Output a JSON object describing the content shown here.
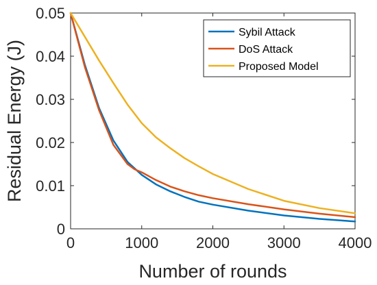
{
  "chart_data": {
    "type": "line",
    "xlabel": "Number of rounds",
    "ylabel": "Residual Energy (J)",
    "xlim": [
      0,
      4000
    ],
    "ylim": [
      0,
      0.05
    ],
    "xticks": [
      0,
      1000,
      2000,
      3000,
      4000
    ],
    "xtick_labels": [
      "0",
      "1000",
      "2000",
      "3000",
      "4000"
    ],
    "yticks": [
      0,
      0.01,
      0.02,
      0.03,
      0.04,
      0.05
    ],
    "ytick_labels": [
      "0",
      "0.01",
      "0.02",
      "0.03",
      "0.04",
      "0.05"
    ],
    "grid": false,
    "legend_position": "top-right",
    "series": [
      {
        "name": "Sybil Attack",
        "color": "#0072BD",
        "x": [
          0,
          200,
          400,
          600,
          800,
          1000,
          1200,
          1400,
          1600,
          1800,
          2000,
          2500,
          3000,
          3500,
          4000
        ],
        "y": [
          0.05,
          0.038,
          0.028,
          0.0205,
          0.0155,
          0.0125,
          0.0103,
          0.0087,
          0.0074,
          0.0063,
          0.0056,
          0.0042,
          0.0031,
          0.0023,
          0.0017
        ]
      },
      {
        "name": "DoS Attack",
        "color": "#D95319",
        "x": [
          0,
          200,
          400,
          600,
          800,
          900,
          1000,
          1200,
          1400,
          1600,
          1800,
          2000,
          2500,
          3000,
          3500,
          4000
        ],
        "y": [
          0.05,
          0.0375,
          0.0275,
          0.0195,
          0.015,
          0.0138,
          0.0131,
          0.0113,
          0.0098,
          0.0087,
          0.0078,
          0.0071,
          0.0057,
          0.0045,
          0.0035,
          0.0027
        ]
      },
      {
        "name": "Proposed Model",
        "color": "#EDB120",
        "x": [
          0,
          200,
          400,
          600,
          800,
          1000,
          1200,
          1400,
          1600,
          1800,
          2000,
          2500,
          3000,
          3500,
          4000
        ],
        "y": [
          0.05,
          0.0445,
          0.039,
          0.0338,
          0.0288,
          0.0245,
          0.0212,
          0.0187,
          0.0164,
          0.0145,
          0.0127,
          0.0092,
          0.0065,
          0.0048,
          0.0036
        ]
      }
    ]
  }
}
